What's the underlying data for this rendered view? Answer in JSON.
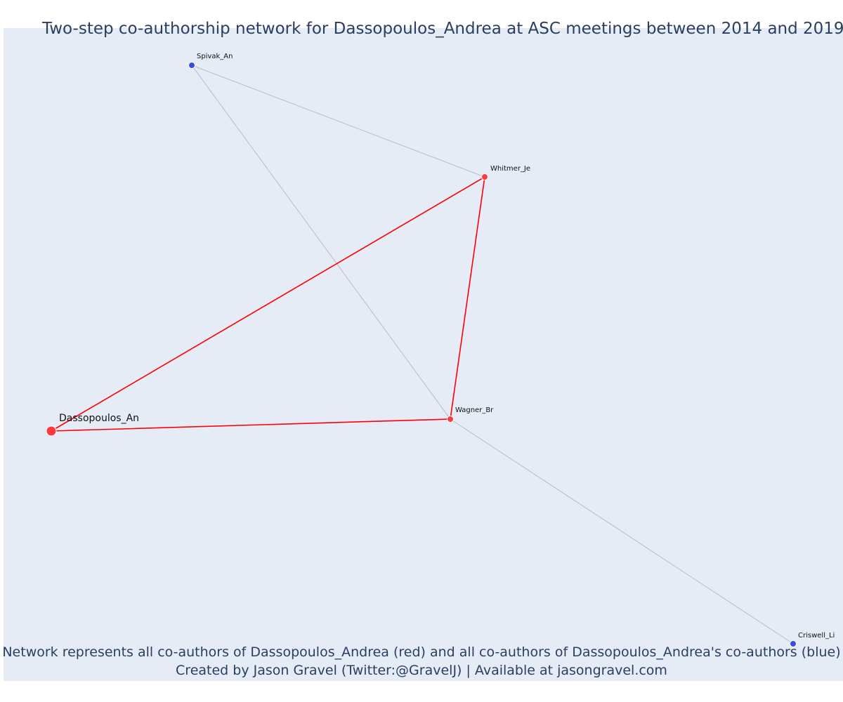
{
  "title": "Two-step co-authorship network for Dassopoulos_Andrea at ASC meetings between 2014 and 2019",
  "caption_line1": "Network represents all co-authors of Dassopoulos_Andrea (red) and all co-authors of Dassopoulos_Andrea's co-authors (blue)",
  "caption_line2": "Created by Jason Gravel (Twitter:@GravelJ) | Available at jasongravel.com",
  "colors": {
    "background": "#e5ecf6",
    "ego_node": "#ff3b3b",
    "first_step_node": "#ff3b3b",
    "second_step_node": "#3b4be6",
    "first_step_edge": "#ff0000",
    "second_step_edge": "#b8bccb",
    "text": "#2a3f5f"
  },
  "network": {
    "nodes": [
      {
        "id": "dassopoulos",
        "label": "Dassopoulos_An",
        "group": "ego"
      },
      {
        "id": "whitmer",
        "label": "Whitmer_Je",
        "group": "first_step"
      },
      {
        "id": "wagner",
        "label": "Wagner_Br",
        "group": "first_step"
      },
      {
        "id": "spivak",
        "label": "Spivak_An",
        "group": "second_step"
      },
      {
        "id": "criswell",
        "label": "Criswell_Li",
        "group": "second_step"
      }
    ],
    "edges": [
      {
        "source": "dassopoulos",
        "target": "whitmer",
        "group": "first_step"
      },
      {
        "source": "dassopoulos",
        "target": "wagner",
        "group": "first_step"
      },
      {
        "source": "whitmer",
        "target": "wagner",
        "group": "first_step"
      },
      {
        "source": "spivak",
        "target": "whitmer",
        "group": "second_step"
      },
      {
        "source": "spivak",
        "target": "wagner",
        "group": "second_step"
      },
      {
        "source": "wagner",
        "target": "criswell",
        "group": "second_step"
      }
    ]
  }
}
